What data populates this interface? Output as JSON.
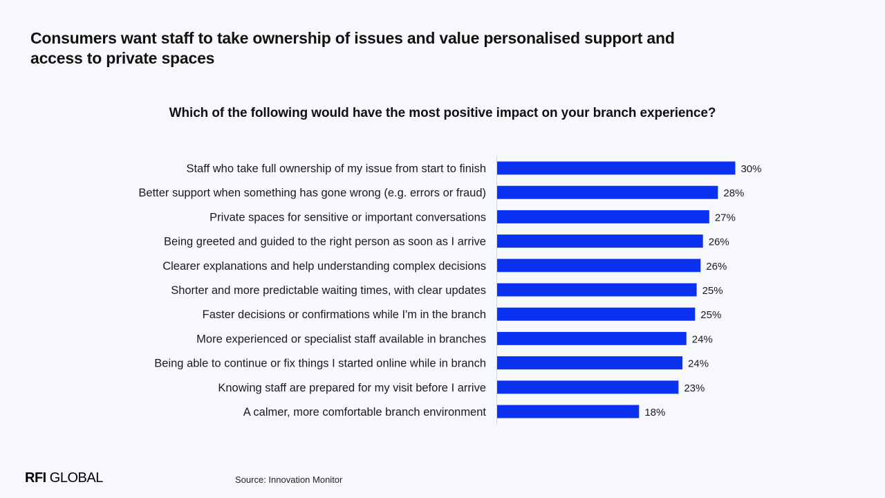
{
  "slide": {
    "title": "Consumers want staff to take ownership of issues and value personalised support and access to private spaces",
    "source": "Source: Innovation Monitor",
    "logo_bold": "RFI",
    "logo_light": " GLOBAL"
  },
  "chart_data": {
    "type": "bar",
    "orientation": "horizontal",
    "title": "Which of the following would have the most positive impact on your branch experience?",
    "categories": [
      "Staff who take full ownership of my issue from start to finish",
      "Better support when something has gone wrong (e.g. errors or fraud)",
      "Private spaces for sensitive or important conversations",
      "Being greeted and guided to the right person as soon as I arrive",
      "Clearer explanations and help understanding complex decisions",
      "Shorter and more predictable waiting times, with clear updates",
      "Faster decisions or confirmations while I'm in the branch",
      "More experienced or specialist staff available in branches",
      "Being able to continue or fix things I started online while in branch",
      "Knowing staff are prepared for my visit before I arrive",
      "A calmer, more comfortable branch environment"
    ],
    "values": [
      30.2,
      28.0,
      26.9,
      26.1,
      25.8,
      25.3,
      25.1,
      24.0,
      23.5,
      23.0,
      18.0
    ],
    "data_labels": [
      "30%",
      "28%",
      "27%",
      "26%",
      "26%",
      "25%",
      "25%",
      "24%",
      "24%",
      "23%",
      "18%"
    ],
    "unit": "%",
    "xlim": [
      0,
      32
    ],
    "bar_color": "#0a32f0",
    "grid": false
  }
}
